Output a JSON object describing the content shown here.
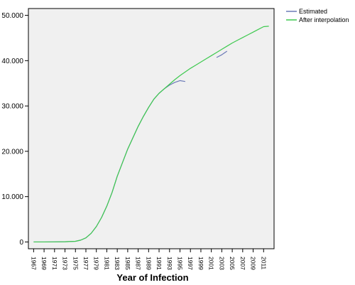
{
  "chart_data": {
    "type": "line",
    "title": "",
    "xlabel": "Year of Infection",
    "ylabel": "",
    "ylim": [
      -1500,
      51500
    ],
    "xlim": [
      1966,
      2013
    ],
    "grid": false,
    "legend_position": "top-right",
    "background_color": "#f0f0f0",
    "y_ticks": [
      0,
      10000,
      20000,
      30000,
      40000,
      50000
    ],
    "y_tick_labels": [
      "0",
      "10.000",
      "20.000",
      "30.000",
      "40.000",
      "50.000"
    ],
    "x_tick_labels": [
      "1967",
      "1969",
      "1971",
      "1973",
      "1975",
      "1977",
      "1979",
      "1981",
      "1983",
      "1985",
      "1987",
      "1989",
      "1991",
      "1993",
      "1995",
      "1997",
      "1999",
      "2001",
      "2003",
      "2005",
      "2007",
      "2009",
      "2011"
    ],
    "series": [
      {
        "name": "Estimated",
        "color": "#6b7ab7",
        "segments": [
          {
            "x": [
              1967,
              1969,
              1971,
              1973,
              1975,
              1976,
              1977,
              1978,
              1979,
              1980,
              1981,
              1982,
              1983,
              1984,
              1985,
              1986,
              1987,
              1988,
              1989,
              1990,
              1991,
              1992,
              1993,
              1994,
              1995,
              1996
            ],
            "y": [
              0,
              0,
              20,
              50,
              150,
              400,
              900,
              1900,
              3400,
              5400,
              7900,
              10900,
              14500,
              17500,
              20500,
              23000,
              25500,
              27700,
              29700,
              31500,
              32800,
              33800,
              34600,
              35200,
              35600,
              35400
            ]
          },
          {
            "x": [
              2002,
              2003,
              2004
            ],
            "y": [
              40700,
              41300,
              42100
            ]
          }
        ]
      },
      {
        "name": "After interpolation",
        "color": "#3ec94f",
        "segments": [
          {
            "x": [
              1967,
              1969,
              1971,
              1973,
              1975,
              1976,
              1977,
              1978,
              1979,
              1980,
              1981,
              1982,
              1983,
              1984,
              1985,
              1986,
              1987,
              1988,
              1989,
              1990,
              1991,
              1992,
              1993,
              1994,
              1995,
              1996,
              1997,
              1998,
              1999,
              2000,
              2001,
              2002,
              2003,
              2004,
              2005,
              2006,
              2007,
              2008,
              2009,
              2010,
              2011,
              2012
            ],
            "y": [
              0,
              0,
              20,
              50,
              150,
              400,
              900,
              1900,
              3400,
              5400,
              7900,
              10900,
              14500,
              17500,
              20500,
              23000,
              25500,
              27700,
              29700,
              31500,
              32800,
              33800,
              34800,
              35800,
              36700,
              37500,
              38300,
              39000,
              39700,
              40400,
              41100,
              41800,
              42500,
              43200,
              43900,
              44500,
              45100,
              45700,
              46300,
              46900,
              47500,
              47600
            ]
          }
        ]
      }
    ]
  }
}
